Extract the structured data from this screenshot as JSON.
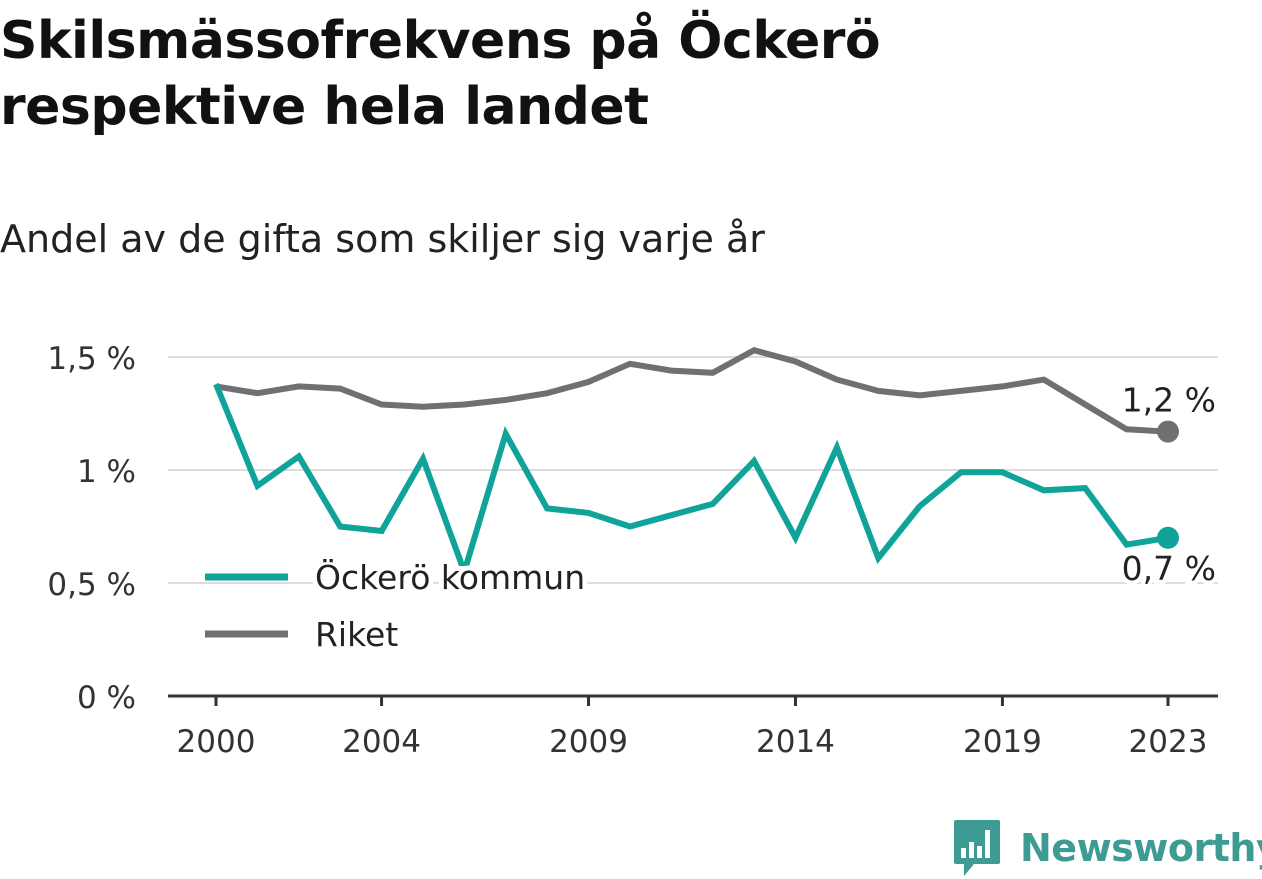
{
  "title": "Skilsmässofrekvens på Öckerö respektive hela landet",
  "subtitle": "Andel av de gifta som skiljer sig varje år",
  "brand": "Newsworthy",
  "colors": {
    "ockero": "#10a39a",
    "riket": "#707074",
    "grid": "#dcdcdc",
    "axis": "#333333",
    "brand": "#3d9b94"
  },
  "chart_data": {
    "type": "line",
    "ylim": [
      0,
      1.5
    ],
    "yticks": [
      {
        "value": 0,
        "label": "0 %"
      },
      {
        "value": 0.5,
        "label": "0,5 %"
      },
      {
        "value": 1.0,
        "label": "1 %"
      },
      {
        "value": 1.5,
        "label": "1,5 %"
      }
    ],
    "xticks": [
      2000,
      2004,
      2009,
      2014,
      2019,
      2023
    ],
    "x": [
      2000,
      2001,
      2002,
      2003,
      2004,
      2005,
      2006,
      2007,
      2008,
      2009,
      2010,
      2011,
      2012,
      2013,
      2014,
      2015,
      2016,
      2017,
      2018,
      2019,
      2020,
      2021,
      2022,
      2023
    ],
    "series": [
      {
        "name": "Öckerö kommun",
        "color": "#10a39a",
        "values": [
          1.38,
          0.93,
          1.06,
          0.75,
          0.73,
          1.05,
          0.55,
          1.16,
          0.83,
          0.81,
          0.75,
          0.8,
          0.85,
          1.04,
          0.7,
          1.1,
          0.61,
          0.84,
          0.99,
          0.99,
          0.91,
          0.92,
          0.67,
          0.7
        ],
        "end_label": "0,7 %"
      },
      {
        "name": "Riket",
        "color": "#707074",
        "values": [
          1.37,
          1.34,
          1.37,
          1.36,
          1.29,
          1.28,
          1.29,
          1.31,
          1.34,
          1.39,
          1.47,
          1.44,
          1.43,
          1.53,
          1.48,
          1.4,
          1.35,
          1.33,
          1.35,
          1.37,
          1.4,
          1.29,
          1.18,
          1.17
        ],
        "end_label": "1,2 %"
      }
    ],
    "legend": "bottom-left"
  }
}
